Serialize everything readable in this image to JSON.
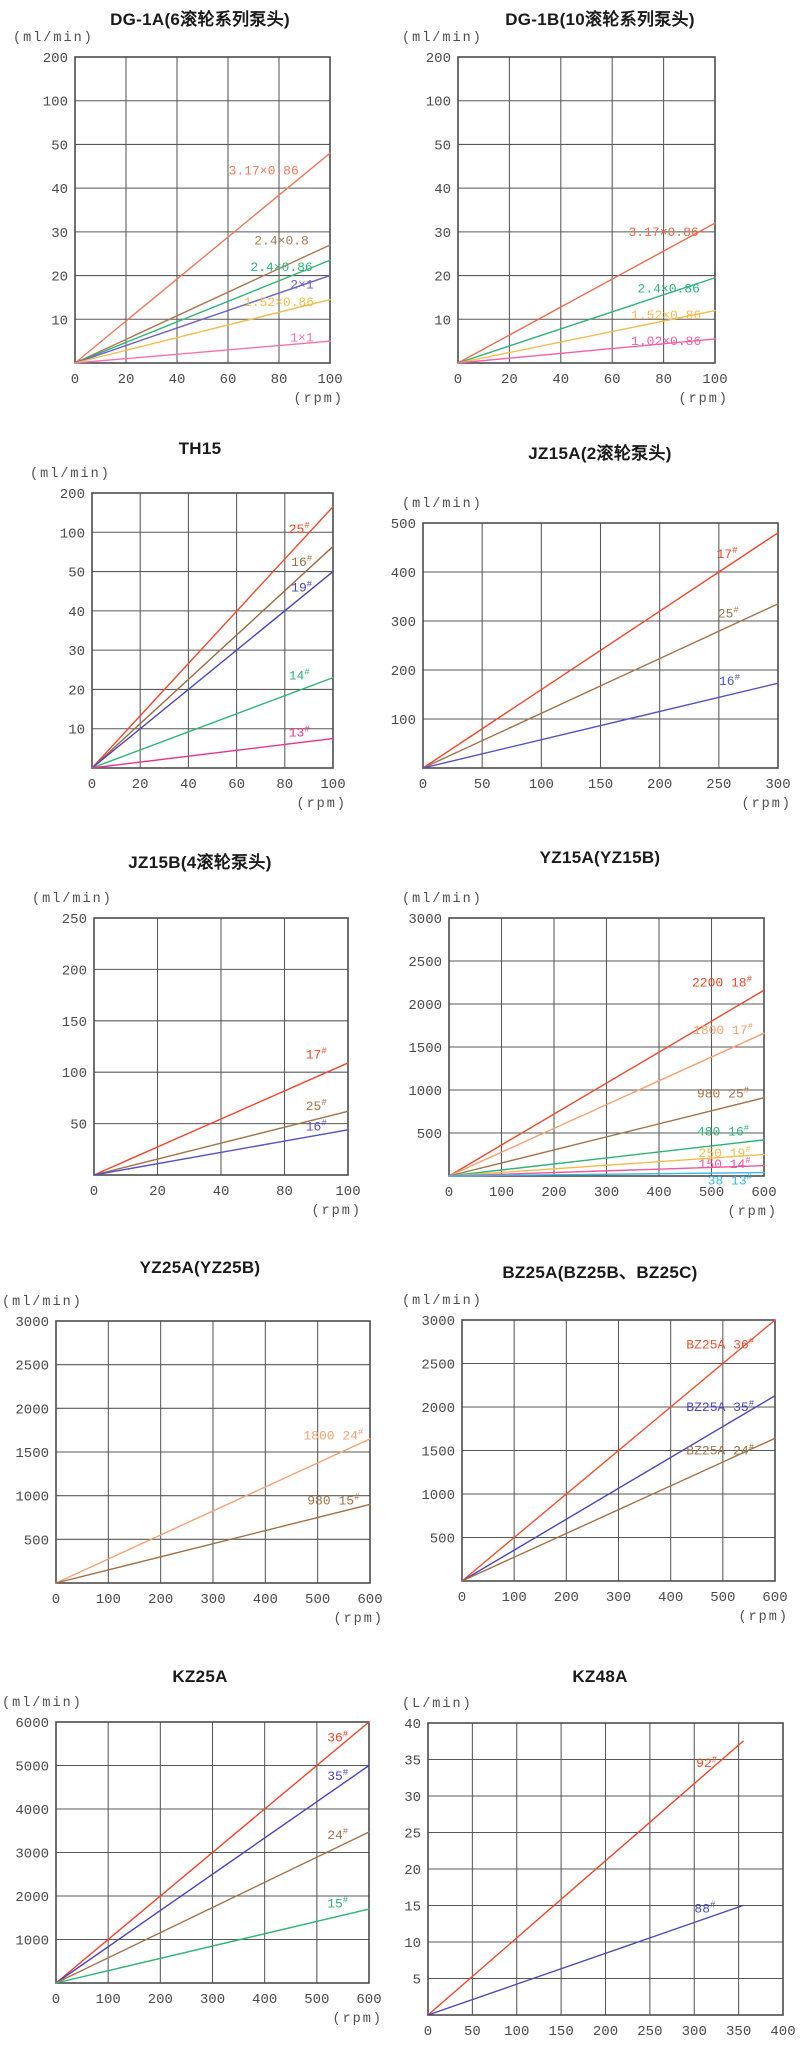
{
  "chart_data": [
    {
      "type": "line",
      "title": "DG-1A(6滚轮系列泵头)",
      "unit": "(ml/min)",
      "x_unit": "(rpm)",
      "x_ticks": [
        0,
        20,
        40,
        60,
        80,
        100
      ],
      "y_ticks": [
        10,
        20,
        30,
        40,
        50,
        100,
        200
      ],
      "series": [
        {
          "label": "3.17×0.86",
          "color": "#ed7a5d",
          "points": [
            [
              0,
              0
            ],
            [
              100,
              48
            ]
          ],
          "label_pos": [
            74,
            44
          ]
        },
        {
          "label": "2.4×0.8",
          "color": "#aa7a52",
          "points": [
            [
              0,
              0
            ],
            [
              100,
              27
            ]
          ],
          "label_pos": [
            81,
            28
          ]
        },
        {
          "label": "2.4×0.86",
          "color": "#2eb476",
          "points": [
            [
              0,
              0
            ],
            [
              100,
              23.5
            ]
          ],
          "label_pos": [
            81,
            22
          ]
        },
        {
          "label": "2×1",
          "color": "#6d61c8",
          "points": [
            [
              0,
              0
            ],
            [
              100,
              20
            ]
          ],
          "label_pos": [
            89,
            18
          ]
        },
        {
          "label": "1.52×0.86",
          "color": "#f3bc4e",
          "points": [
            [
              0,
              0
            ],
            [
              100,
              14.5
            ]
          ],
          "label_pos": [
            80,
            14
          ]
        },
        {
          "label": "1×1",
          "color": "#f573ad",
          "points": [
            [
              0,
              0
            ],
            [
              100,
              5
            ]
          ],
          "label_pos": [
            89,
            5.8
          ]
        }
      ]
    },
    {
      "type": "line",
      "title": "DG-1B(10滚轮系列泵头)",
      "unit": "(ml/min)",
      "x_unit": "(rpm)",
      "x_ticks": [
        0,
        20,
        40,
        60,
        80,
        100
      ],
      "y_ticks": [
        10,
        20,
        30,
        40,
        50,
        100,
        200
      ],
      "series": [
        {
          "label": "3.17×0.86",
          "color": "#ec6b4d",
          "points": [
            [
              0,
              0
            ],
            [
              100,
              32
            ]
          ],
          "label_pos": [
            80,
            30
          ]
        },
        {
          "label": "2.4×0.86",
          "color": "#2eb476",
          "points": [
            [
              0,
              0
            ],
            [
              100,
              19.5
            ]
          ],
          "label_pos": [
            82,
            17
          ]
        },
        {
          "label": "1.52×0.86",
          "color": "#f3bc4e",
          "points": [
            [
              0,
              0
            ],
            [
              100,
              12
            ]
          ],
          "label_pos": [
            81,
            11
          ]
        },
        {
          "label": "1.02×0.86",
          "color": "#f55fa5",
          "points": [
            [
              0,
              0
            ],
            [
              100,
              5.5
            ]
          ],
          "label_pos": [
            81,
            5
          ]
        }
      ]
    },
    {
      "type": "line",
      "title": "TH15",
      "unit": "(ml/min)",
      "x_unit": "(rpm)",
      "x_ticks": [
        0,
        20,
        40,
        60,
        80,
        100
      ],
      "y_ticks": [
        10,
        20,
        30,
        40,
        50,
        100,
        200
      ],
      "series": [
        {
          "label": "25#",
          "color": "#f04a2e",
          "points": [
            [
              0,
              0
            ],
            [
              100,
              165
            ]
          ],
          "label_pos": [
            86,
            108
          ]
        },
        {
          "label": "16#",
          "color": "#9c6a42",
          "points": [
            [
              0,
              0
            ],
            [
              100,
              82
            ]
          ],
          "label_pos": [
            87,
            62
          ]
        },
        {
          "label": "19#",
          "color": "#4a45b5",
          "points": [
            [
              0,
              0
            ],
            [
              100,
              50
            ]
          ],
          "label_pos": [
            87,
            46
          ]
        },
        {
          "label": "14#",
          "color": "#2eb476",
          "points": [
            [
              0,
              0
            ],
            [
              100,
              23
            ]
          ],
          "label_pos": [
            86,
            23.5
          ]
        },
        {
          "label": "13#",
          "color": "#ee2f8e",
          "points": [
            [
              0,
              0
            ],
            [
              100,
              7.5
            ]
          ],
          "label_pos": [
            86,
            9
          ]
        }
      ]
    },
    {
      "type": "line",
      "title": "JZ15A(2滚轮泵头)",
      "unit": "(ml/min)",
      "x_unit": "(rpm)",
      "x_ticks": [
        0,
        50,
        100,
        150,
        200,
        250,
        300
      ],
      "y_ticks": [
        100,
        200,
        300,
        400,
        500
      ],
      "series": [
        {
          "label": "17#",
          "color": "#ef462a",
          "points": [
            [
              0,
              0
            ],
            [
              300,
              480
            ]
          ],
          "label_pos": [
            257,
            437
          ]
        },
        {
          "label": "25#",
          "color": "#a3734b",
          "points": [
            [
              0,
              0
            ],
            [
              300,
              335
            ]
          ],
          "label_pos": [
            258,
            315
          ]
        },
        {
          "label": "16#",
          "color": "#5551c6",
          "points": [
            [
              0,
              0
            ],
            [
              300,
              173
            ]
          ],
          "label_pos": [
            259,
            178
          ]
        }
      ]
    },
    {
      "type": "line",
      "title": "JZ15B(4滚轮泵头)",
      "unit": "(ml/min)",
      "x_unit": "(rpm)",
      "x_ticks": [
        0,
        20,
        40,
        80,
        100
      ],
      "y_ticks": [
        50,
        100,
        150,
        200,
        250
      ],
      "series": [
        {
          "label": "17#",
          "color": "#ef462a",
          "points": [
            [
              0,
              0
            ],
            [
              100,
              109
            ]
          ],
          "label_pos": [
            90,
            117
          ]
        },
        {
          "label": "25#",
          "color": "#a3734b",
          "points": [
            [
              0,
              0
            ],
            [
              100,
              62
            ]
          ],
          "label_pos": [
            90,
            67
          ]
        },
        {
          "label": "16#",
          "color": "#5551c6",
          "points": [
            [
              0,
              0
            ],
            [
              100,
              44
            ]
          ],
          "label_pos": [
            90,
            47
          ]
        }
      ]
    },
    {
      "type": "line",
      "title": "YZ15A(YZ15B)",
      "unit": "(ml/min)",
      "x_unit": "(rpm)",
      "x_ticks": [
        0,
        100,
        200,
        300,
        400,
        500,
        600
      ],
      "y_ticks": [
        500,
        1000,
        1500,
        2000,
        2500,
        3000
      ],
      "series": [
        {
          "label": "2200 18#",
          "color": "#e84a2c",
          "points": [
            [
              0,
              0
            ],
            [
              600,
              2160
            ]
          ],
          "label_pos": [
            520,
            2250
          ]
        },
        {
          "label": "1800 17#",
          "color": "#f5a272",
          "points": [
            [
              0,
              0
            ],
            [
              600,
              1660
            ]
          ],
          "label_pos": [
            522,
            1700
          ]
        },
        {
          "label": "980 25#",
          "color": "#a3734b",
          "points": [
            [
              0,
              0
            ],
            [
              600,
              910
            ]
          ],
          "label_pos": [
            522,
            960
          ]
        },
        {
          "label": "480 16#",
          "color": "#2eb476",
          "points": [
            [
              0,
              0
            ],
            [
              600,
              420
            ]
          ],
          "label_pos": [
            522,
            520
          ]
        },
        {
          "label": "250 19#",
          "color": "#f3bc4e",
          "points": [
            [
              0,
              0
            ],
            [
              600,
              250
            ]
          ],
          "label_pos": [
            525,
            265
          ]
        },
        {
          "label": "150 14#",
          "color": "#f055a0",
          "points": [
            [
              0,
              0
            ],
            [
              600,
              120
            ]
          ],
          "label_pos": [
            525,
            140
          ]
        },
        {
          "label": "38 13#",
          "color": "#3ab7e9",
          "points": [
            [
              0,
              0
            ],
            [
              600,
              40
            ]
          ],
          "label_pos": [
            535,
            -55
          ]
        }
      ]
    },
    {
      "type": "line",
      "title": "YZ25A(YZ25B)",
      "unit": "(ml/min)",
      "x_unit": "(rpm)",
      "x_ticks": [
        0,
        100,
        200,
        300,
        400,
        500,
        600
      ],
      "y_ticks": [
        500,
        1000,
        1500,
        2000,
        2500,
        3000
      ],
      "series": [
        {
          "label": "1800 24#",
          "color": "#f5a272",
          "points": [
            [
              0,
              0
            ],
            [
              600,
              1650
            ]
          ],
          "label_pos": [
            530,
            1690
          ]
        },
        {
          "label": "980 15#",
          "color": "#9f7048",
          "points": [
            [
              0,
              0
            ],
            [
              600,
              900
            ]
          ],
          "label_pos": [
            530,
            945
          ]
        }
      ]
    },
    {
      "type": "line",
      "title": "BZ25A(BZ25B、BZ25C)",
      "unit": "(ml/min)",
      "x_unit": "(rpm)",
      "x_ticks": [
        0,
        100,
        200,
        300,
        400,
        500,
        600
      ],
      "y_ticks": [
        500,
        1000,
        1500,
        2000,
        2500,
        3000
      ],
      "series": [
        {
          "label": "BZ25A 36#",
          "color": "#f05233",
          "points": [
            [
              0,
              0
            ],
            [
              600,
              3000
            ]
          ],
          "label_pos": [
            495,
            2720
          ]
        },
        {
          "label": "BZ25A 35#",
          "color": "#4946bd",
          "points": [
            [
              0,
              0
            ],
            [
              600,
              2130
            ]
          ],
          "label_pos": [
            495,
            2000
          ]
        },
        {
          "label": "BZ25A 24#",
          "color": "#a3734b",
          "points": [
            [
              0,
              0
            ],
            [
              600,
              1640
            ]
          ],
          "label_pos": [
            495,
            1500
          ]
        }
      ]
    },
    {
      "type": "line",
      "title": "KZ25A",
      "unit": "(ml/min)",
      "x_unit": "(rpm)",
      "x_ticks": [
        0,
        100,
        200,
        300,
        400,
        500,
        600
      ],
      "y_ticks": [
        1000,
        2000,
        3000,
        4000,
        5000,
        6000
      ],
      "series": [
        {
          "label": "36#",
          "color": "#f0452b",
          "points": [
            [
              0,
              0
            ],
            [
              600,
              6000
            ]
          ],
          "label_pos": [
            540,
            5640
          ]
        },
        {
          "label": "35#",
          "color": "#4946bd",
          "points": [
            [
              0,
              0
            ],
            [
              600,
              5000
            ]
          ],
          "label_pos": [
            540,
            4760
          ]
        },
        {
          "label": "24#",
          "color": "#a3734b",
          "points": [
            [
              0,
              0
            ],
            [
              600,
              3470
            ]
          ],
          "label_pos": [
            540,
            3400
          ]
        },
        {
          "label": "15#",
          "color": "#2eb476",
          "points": [
            [
              0,
              0
            ],
            [
              600,
              1700
            ]
          ],
          "label_pos": [
            540,
            1830
          ]
        }
      ]
    },
    {
      "type": "line",
      "title": "KZ48A",
      "unit": "(L/min)",
      "x_unit": "",
      "x_ticks": [
        0,
        50,
        100,
        150,
        200,
        250,
        300,
        350,
        400
      ],
      "y_ticks": [
        5,
        10,
        15,
        20,
        25,
        30,
        35,
        40
      ],
      "series": [
        {
          "label": "92#",
          "color": "#ef462a",
          "points": [
            [
              0,
              0
            ],
            [
              355,
              37.5
            ]
          ],
          "label_pos": [
            314,
            34.5
          ]
        },
        {
          "label": "88#",
          "color": "#4a49b6",
          "points": [
            [
              0,
              0
            ],
            [
              355,
              15
            ]
          ],
          "label_pos": [
            312,
            14.6
          ]
        }
      ]
    }
  ]
}
